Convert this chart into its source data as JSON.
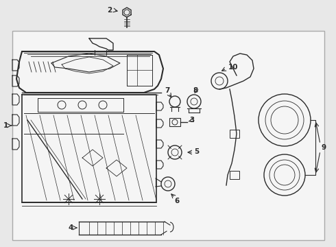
{
  "background_color": "#e8e8e8",
  "border_color": "#aaaaaa",
  "line_color": "#2a2a2a",
  "fig_width": 4.9,
  "fig_height": 3.6,
  "dpi": 100,
  "inner_bg": "#f5f5f5",
  "label_color": "#111111"
}
